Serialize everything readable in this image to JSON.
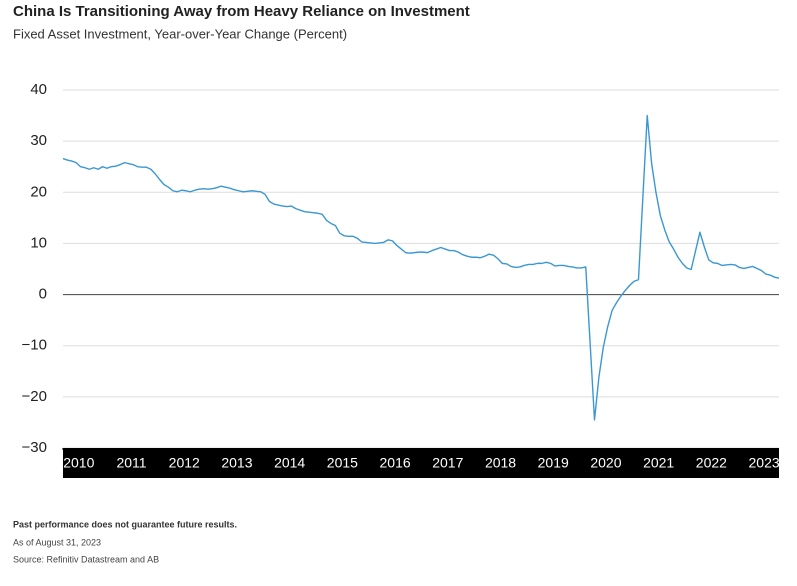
{
  "chart_data": {
    "type": "line",
    "title": "China Is Transitioning Away from Heavy Reliance on Investment",
    "subtitle": "Fixed Asset Investment, Year-over-Year Change (Percent)",
    "notes": [
      "Past performance does not guarantee future results.",
      "As of August 31, 2023",
      "Source: Refinitiv Datastream and AB"
    ],
    "color": "#3b97d3",
    "grid": true,
    "x": [
      2010,
      2010.083,
      2010.167,
      2010.25,
      2010.333,
      2010.417,
      2010.5,
      2010.583,
      2010.667,
      2010.75,
      2010.833,
      2010.917,
      2011,
      2011.083,
      2011.167,
      2011.25,
      2011.333,
      2011.417,
      2011.5,
      2011.583,
      2011.667,
      2011.75,
      2011.833,
      2011.917,
      2012,
      2012.083,
      2012.167,
      2012.25,
      2012.333,
      2012.417,
      2012.5,
      2012.583,
      2012.667,
      2012.75,
      2012.833,
      2012.917,
      2013,
      2013.083,
      2013.167,
      2013.25,
      2013.333,
      2013.417,
      2013.5,
      2013.583,
      2013.667,
      2013.75,
      2013.833,
      2013.917,
      2014,
      2014.083,
      2014.167,
      2014.25,
      2014.333,
      2014.417,
      2014.5,
      2014.583,
      2014.667,
      2014.75,
      2014.833,
      2014.917,
      2015,
      2015.083,
      2015.167,
      2015.25,
      2015.333,
      2015.417,
      2015.5,
      2015.583,
      2015.667,
      2015.75,
      2015.833,
      2015.917,
      2016,
      2016.083,
      2016.167,
      2016.25,
      2016.333,
      2016.417,
      2016.5,
      2016.583,
      2016.667,
      2016.75,
      2016.833,
      2016.917,
      2017,
      2017.083,
      2017.167,
      2017.25,
      2017.333,
      2017.417,
      2017.5,
      2017.583,
      2017.667,
      2017.75,
      2017.833,
      2017.917,
      2018,
      2018.083,
      2018.167,
      2018.25,
      2018.333,
      2018.417,
      2018.5,
      2018.583,
      2018.667,
      2018.75,
      2018.833,
      2018.917,
      2019,
      2019.083,
      2019.167,
      2019.25,
      2019.333,
      2019.417,
      2019.5,
      2019.583,
      2019.667,
      2019.75,
      2019.833,
      2019.917,
      2020.083,
      2020.167,
      2020.25,
      2020.333,
      2020.417,
      2020.5,
      2020.583,
      2020.667,
      2020.75,
      2020.833,
      2020.917,
      2021.083,
      2021.167,
      2021.25,
      2021.333,
      2021.417,
      2021.5,
      2021.583,
      2021.667,
      2021.75,
      2021.833,
      2021.917,
      2022.083,
      2022.167,
      2022.25,
      2022.333,
      2022.417,
      2022.5,
      2022.583,
      2022.667,
      2022.75,
      2022.833,
      2022.917,
      2023.083,
      2023.167,
      2023.25,
      2023.333,
      2023.417,
      2023.5,
      2023.583
    ],
    "values": [
      26.6,
      26.3,
      26.1,
      25.8,
      25.0,
      24.8,
      24.5,
      24.8,
      24.5,
      25.0,
      24.7,
      25.0,
      25.1,
      25.4,
      25.8,
      25.6,
      25.4,
      25.0,
      24.9,
      24.9,
      24.5,
      23.6,
      22.5,
      21.5,
      21.0,
      20.3,
      20.1,
      20.4,
      20.3,
      20.1,
      20.4,
      20.6,
      20.7,
      20.6,
      20.7,
      20.9,
      21.2,
      21.0,
      20.8,
      20.5,
      20.3,
      20.1,
      20.2,
      20.3,
      20.2,
      20.1,
      19.6,
      18.2,
      17.7,
      17.5,
      17.3,
      17.2,
      17.3,
      16.8,
      16.5,
      16.2,
      16.1,
      16.0,
      15.9,
      15.7,
      14.5,
      13.9,
      13.5,
      12.0,
      11.5,
      11.4,
      11.4,
      11.0,
      10.3,
      10.2,
      10.1,
      10.0,
      10.1,
      10.2,
      10.7,
      10.5,
      9.6,
      8.9,
      8.2,
      8.1,
      8.2,
      8.3,
      8.3,
      8.2,
      8.6,
      8.9,
      9.2,
      8.9,
      8.6,
      8.6,
      8.3,
      7.8,
      7.5,
      7.3,
      7.3,
      7.2,
      7.5,
      7.9,
      7.7,
      7.0,
      6.1,
      6.0,
      5.5,
      5.3,
      5.4,
      5.7,
      5.9,
      5.9,
      6.1,
      6.1,
      6.3,
      6.1,
      5.6,
      5.7,
      5.7,
      5.5,
      5.4,
      5.2,
      5.2,
      5.4,
      -24.5,
      -16.1,
      -10.3,
      -6.3,
      -3.1,
      -1.6,
      -0.3,
      0.8,
      1.8,
      2.6,
      2.9,
      35.0,
      25.6,
      19.9,
      15.4,
      12.6,
      10.3,
      8.9,
      7.3,
      6.1,
      5.2,
      4.9,
      12.2,
      9.3,
      6.8,
      6.2,
      6.1,
      5.7,
      5.8,
      5.9,
      5.8,
      5.3,
      5.1,
      5.5,
      5.1,
      4.7,
      4.0,
      3.8,
      3.4,
      3.2
    ],
    "xlim": [
      2010,
      2023.583
    ],
    "xticks": [
      2010,
      2011,
      2012,
      2013,
      2014,
      2015,
      2016,
      2017,
      2018,
      2019,
      2020,
      2021,
      2022,
      2023
    ],
    "ylim": [
      -30,
      40
    ],
    "yticks": [
      {
        "value": -30,
        "label": "−30"
      },
      {
        "value": -20,
        "label": "−20"
      },
      {
        "value": -10,
        "label": "−10"
      },
      0,
      10,
      20,
      30,
      40
    ]
  }
}
